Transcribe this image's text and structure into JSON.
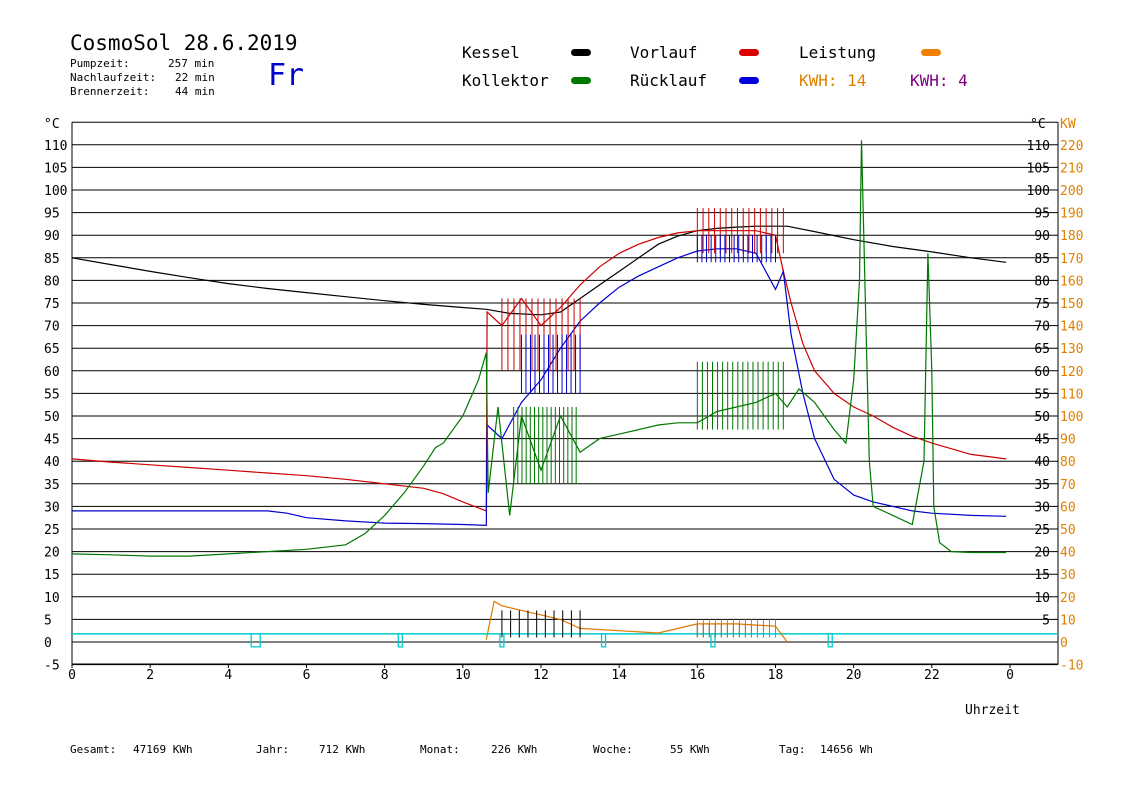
{
  "header": {
    "title": "CosmoSol 28.6.2019",
    "info": [
      {
        "label": "Pumpzeit:",
        "value": "257 min"
      },
      {
        "label": "Nachlaufzeit:",
        "value": "22 min"
      },
      {
        "label": "Brennerzeit:",
        "value": "44 min"
      }
    ],
    "weekday": "Fr"
  },
  "legend": {
    "kessel": "Kessel",
    "kollektor": "Kollektor",
    "vorlauf": "Vorlauf",
    "ruecklauf": "Rücklauf",
    "leistung": "Leistung",
    "kwh_orange": "KWH: 14",
    "kwh_purple": "KWH: 4"
  },
  "footer": {
    "gesamt_label": "Gesamt:",
    "gesamt_value": "47169 KWh",
    "jahr_label": "Jahr:",
    "jahr_value": "712 KWh",
    "monat_label": "Monat:",
    "monat_value": "226 KWh",
    "woche_label": "Woche:",
    "woche_value": "55 KWh",
    "tag_label": "Tag:",
    "tag_value": "14656 Wh"
  },
  "colors": {
    "kessel": "#000000",
    "vorlauf": "#cc0000",
    "ruecklauf": "#0000cc",
    "kollektor": "#007700",
    "leistung": "#e07800",
    "purple": "#800080",
    "pump": "#00cccc",
    "kw_axis": "#e08000"
  },
  "chart_data": {
    "type": "line",
    "title": "CosmoSol 28.6.2019",
    "xlabel": "Uhrzeit",
    "ylabel_left": "°C",
    "ylabel_right": "°C KW",
    "xlim": [
      0,
      24
    ],
    "ylim": [
      -5,
      112
    ],
    "x_ticks": [
      "0",
      "2",
      "4",
      "6",
      "8",
      "10",
      "12",
      "14",
      "16",
      "18",
      "20",
      "22",
      "0"
    ],
    "y_ticks_left": [
      "-5",
      "0",
      "5",
      "10",
      "15",
      "20",
      "25",
      "30",
      "35",
      "40",
      "45",
      "50",
      "55",
      "60",
      "65",
      "70",
      "75",
      "80",
      "85",
      "90",
      "95",
      "100",
      "105",
      "110"
    ],
    "y_ticks_right_c": [
      "5",
      "10",
      "15",
      "20",
      "25",
      "30",
      "35",
      "40",
      "45",
      "50",
      "55",
      "60",
      "65",
      "70",
      "75",
      "80",
      "85",
      "90",
      "95",
      "100",
      "105",
      "110"
    ],
    "y_ticks_right_kw": [
      "-10",
      "0",
      "10",
      "20",
      "30",
      "40",
      "50",
      "60",
      "70",
      "80",
      "90",
      "100",
      "110",
      "120",
      "130",
      "140",
      "150",
      "160",
      "170",
      "180",
      "190",
      "200",
      "210",
      "220"
    ],
    "grid": true,
    "series": [
      {
        "name": "Kessel",
        "color": "#000000",
        "points": [
          [
            0,
            85
          ],
          [
            1,
            83.5
          ],
          [
            2,
            82
          ],
          [
            3,
            80.6
          ],
          [
            4,
            79.3
          ],
          [
            5,
            78.2
          ],
          [
            6,
            77.3
          ],
          [
            7,
            76.4
          ],
          [
            8,
            75.5
          ],
          [
            9,
            74.7
          ],
          [
            10,
            74
          ],
          [
            10.6,
            73.6
          ],
          [
            11.2,
            72.7
          ],
          [
            12,
            72.4
          ],
          [
            12.5,
            73
          ],
          [
            13,
            76
          ],
          [
            13.5,
            79
          ],
          [
            14,
            82
          ],
          [
            14.5,
            85
          ],
          [
            15,
            88
          ],
          [
            15.5,
            89.8
          ],
          [
            16,
            91
          ],
          [
            16.5,
            91.5
          ],
          [
            17,
            91.8
          ],
          [
            17.5,
            92
          ],
          [
            18,
            92
          ],
          [
            18.3,
            92
          ],
          [
            19,
            90.8
          ],
          [
            20,
            89
          ],
          [
            21,
            87.5
          ],
          [
            22,
            86.3
          ],
          [
            23,
            85
          ],
          [
            23.9,
            84
          ]
        ]
      },
      {
        "name": "Vorlauf",
        "color": "#cc0000",
        "points": [
          [
            0,
            40.5
          ],
          [
            1,
            39.8
          ],
          [
            2,
            39.2
          ],
          [
            3,
            38.6
          ],
          [
            4,
            38
          ],
          [
            5,
            37.4
          ],
          [
            6,
            36.8
          ],
          [
            7,
            36
          ],
          [
            8,
            35
          ],
          [
            9,
            34
          ],
          [
            9.5,
            32.8
          ],
          [
            10,
            31
          ],
          [
            10.6,
            29
          ],
          [
            10.62,
            73
          ],
          [
            11,
            70
          ],
          [
            11.5,
            76
          ],
          [
            12,
            70
          ],
          [
            12.5,
            74
          ],
          [
            13,
            79
          ],
          [
            13.5,
            83
          ],
          [
            14,
            86
          ],
          [
            14.5,
            88
          ],
          [
            15,
            89.5
          ],
          [
            15.5,
            90.5
          ],
          [
            16,
            91
          ],
          [
            16.5,
            91
          ],
          [
            17,
            91
          ],
          [
            17.5,
            91
          ],
          [
            18,
            90
          ],
          [
            18.2,
            82
          ],
          [
            18.4,
            75
          ],
          [
            18.7,
            66
          ],
          [
            19,
            60
          ],
          [
            19.5,
            55
          ],
          [
            20,
            52
          ],
          [
            20.5,
            50
          ],
          [
            21,
            47.5
          ],
          [
            21.5,
            45.5
          ],
          [
            22,
            44
          ],
          [
            23,
            41.5
          ],
          [
            23.9,
            40.5
          ]
        ]
      },
      {
        "name": "Rücklauf",
        "color": "#0000cc",
        "points": [
          [
            0,
            29
          ],
          [
            1,
            29
          ],
          [
            2,
            29
          ],
          [
            3,
            29
          ],
          [
            4,
            29
          ],
          [
            5,
            29
          ],
          [
            5.5,
            28.5
          ],
          [
            6,
            27.5
          ],
          [
            7,
            26.8
          ],
          [
            8,
            26.3
          ],
          [
            9,
            26.2
          ],
          [
            10,
            26
          ],
          [
            10.6,
            25.8
          ],
          [
            10.62,
            48
          ],
          [
            11,
            45
          ],
          [
            11.5,
            53
          ],
          [
            12,
            58
          ],
          [
            12.5,
            65
          ],
          [
            13,
            71
          ],
          [
            13.5,
            75
          ],
          [
            14,
            78.5
          ],
          [
            14.5,
            81
          ],
          [
            15,
            83
          ],
          [
            15.5,
            85
          ],
          [
            16,
            86.5
          ],
          [
            16.5,
            87
          ],
          [
            17,
            87
          ],
          [
            17.5,
            86
          ],
          [
            18,
            78
          ],
          [
            18.2,
            82
          ],
          [
            18.4,
            68
          ],
          [
            18.7,
            55
          ],
          [
            19,
            45
          ],
          [
            19.5,
            36
          ],
          [
            20,
            32.5
          ],
          [
            20.5,
            31
          ],
          [
            21,
            30
          ],
          [
            21.5,
            29
          ],
          [
            22,
            28.5
          ],
          [
            23,
            28
          ],
          [
            23.9,
            27.8
          ]
        ]
      },
      {
        "name": "Kollektor",
        "color": "#007700",
        "points": [
          [
            0,
            19.5
          ],
          [
            1,
            19.3
          ],
          [
            2,
            19
          ],
          [
            3,
            19
          ],
          [
            4,
            19.5
          ],
          [
            5,
            20
          ],
          [
            6,
            20.5
          ],
          [
            7,
            21.5
          ],
          [
            7.5,
            24
          ],
          [
            8,
            28
          ],
          [
            8.5,
            33
          ],
          [
            9,
            39
          ],
          [
            9.3,
            43
          ],
          [
            9.5,
            44
          ],
          [
            10,
            50
          ],
          [
            10.4,
            58
          ],
          [
            10.6,
            64
          ],
          [
            10.65,
            33
          ],
          [
            10.9,
            52
          ],
          [
            11.2,
            28
          ],
          [
            11.5,
            50
          ],
          [
            12,
            38
          ],
          [
            12.5,
            50
          ],
          [
            13,
            42
          ],
          [
            13.5,
            45
          ],
          [
            14,
            46
          ],
          [
            14.5,
            47
          ],
          [
            15,
            48
          ],
          [
            15.5,
            48.5
          ],
          [
            16,
            48.5
          ],
          [
            16.5,
            51
          ],
          [
            17,
            52
          ],
          [
            17.5,
            53
          ],
          [
            18,
            55
          ],
          [
            18.3,
            52
          ],
          [
            18.6,
            56
          ],
          [
            19,
            53
          ],
          [
            19.5,
            47
          ],
          [
            19.8,
            44
          ],
          [
            20,
            58
          ],
          [
            20.15,
            80
          ],
          [
            20.2,
            111
          ],
          [
            20.3,
            75
          ],
          [
            20.4,
            40
          ],
          [
            20.5,
            30
          ],
          [
            21,
            28
          ],
          [
            21.5,
            26
          ],
          [
            21.8,
            40
          ],
          [
            21.9,
            86
          ],
          [
            22,
            60
          ],
          [
            22.05,
            30
          ],
          [
            22.2,
            22
          ],
          [
            22.5,
            20
          ],
          [
            23,
            19.8
          ],
          [
            23.9,
            19.8
          ]
        ]
      },
      {
        "name": "Leistung",
        "color": "#e07800",
        "points": [
          [
            10.6,
            0.5
          ],
          [
            10.8,
            9
          ],
          [
            11,
            8
          ],
          [
            11.5,
            7
          ],
          [
            12,
            6
          ],
          [
            12.5,
            5
          ],
          [
            13,
            3
          ],
          [
            14,
            2.5
          ],
          [
            15,
            2
          ],
          [
            16,
            4
          ],
          [
            17,
            4
          ],
          [
            18,
            3.5
          ],
          [
            18.3,
            0
          ]
        ]
      }
    ],
    "pump_marks": [
      4.7,
      8.4,
      11.0,
      13.6,
      16.4,
      19.4
    ]
  }
}
